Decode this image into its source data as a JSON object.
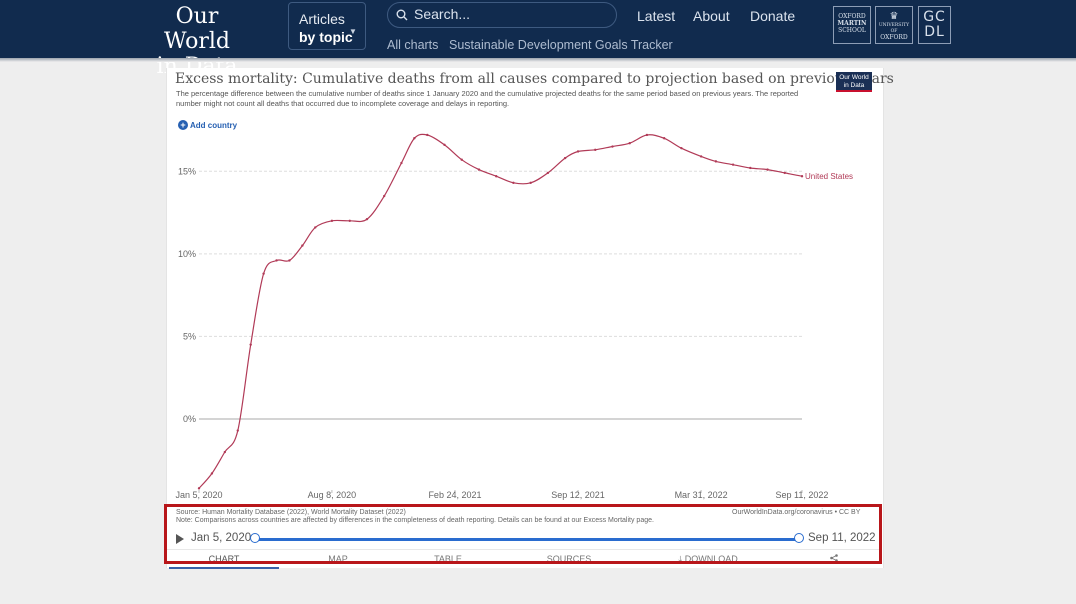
{
  "header": {
    "logo_line1": "Our World",
    "logo_line2": "in Data",
    "articles_label": "Articles",
    "by_topic_label": "by topic",
    "search_placeholder": "Search...",
    "nav": [
      "Latest",
      "About",
      "Donate"
    ],
    "subnav": [
      "All charts",
      "Sustainable Development Goals Tracker"
    ],
    "partners": {
      "oxford_martin": [
        "OXFORD",
        "MARTIN",
        "SCHOOL"
      ],
      "university": [
        "UNIVERSITY OF",
        "OXFORD"
      ],
      "gcdl": [
        "GC",
        "DL"
      ]
    }
  },
  "chart": {
    "title": "Excess mortality: Cumulative deaths from all causes compared to projection based on previous years",
    "subtitle": "The percentage difference between the cumulative number of deaths since 1 January 2020 and the cumulative projected deaths for the same period based on previous years. The reported number might not count all deaths that occurred due to incomplete coverage and delays in reporting.",
    "badge": [
      "Our World",
      "in Data"
    ],
    "add_country": "Add country",
    "source": "Source: Human Mortality Database (2022), World Mortality Dataset (2022)",
    "note": "Note: Comparisons across countries are affected by differences in the completeness of death reporting. Details can be found at our Excess Mortality page.",
    "citation": "OurWorldInData.org/coronavirus • CC BY",
    "timeline_start": "Jan 5, 2020",
    "timeline_end": "Sep 11, 2022",
    "tabs": [
      "CHART",
      "MAP",
      "TABLE",
      "SOURCES",
      "DOWNLOAD"
    ]
  },
  "chart_data": {
    "type": "line",
    "title": "Excess mortality: Cumulative deaths from all causes compared to projection based on previous years",
    "x_tick_labels": [
      "Jan 5, 2020",
      "Aug 8, 2020",
      "Feb 24, 2021",
      "Sep 12, 2021",
      "Mar 31, 2022",
      "Sep 11, 2022"
    ],
    "y_tick_labels": [
      "0%",
      "5%",
      "10%",
      "15%"
    ],
    "ylim": [
      -4.3,
      17.5
    ],
    "grid": true,
    "color": "#b13a57",
    "series": [
      {
        "name": "United States",
        "x": [
          "2020-01-05",
          "2020-01-26",
          "2020-02-16",
          "2020-03-08",
          "2020-03-29",
          "2020-04-19",
          "2020-05-10",
          "2020-05-31",
          "2020-06-21",
          "2020-07-12",
          "2020-08-08",
          "2020-09-06",
          "2020-10-04",
          "2020-11-01",
          "2020-11-29",
          "2020-12-20",
          "2021-01-10",
          "2021-02-07",
          "2021-03-07",
          "2021-04-04",
          "2021-05-02",
          "2021-05-30",
          "2021-06-27",
          "2021-07-25",
          "2021-08-22",
          "2021-09-12",
          "2021-10-10",
          "2021-11-07",
          "2021-12-05",
          "2022-01-02",
          "2022-01-30",
          "2022-02-27",
          "2022-03-31",
          "2022-04-24",
          "2022-05-22",
          "2022-06-19",
          "2022-07-17",
          "2022-08-14",
          "2022-09-11"
        ],
        "values": [
          -4.2,
          -3.3,
          -2.0,
          -0.7,
          4.5,
          8.8,
          9.6,
          9.6,
          10.5,
          11.6,
          12.0,
          12.0,
          12.1,
          13.5,
          15.5,
          17.0,
          17.2,
          16.6,
          15.7,
          15.1,
          14.7,
          14.3,
          14.3,
          14.9,
          15.8,
          16.2,
          16.3,
          16.5,
          16.7,
          17.2,
          17.0,
          16.4,
          15.9,
          15.6,
          15.4,
          15.2,
          15.1,
          14.9,
          14.7
        ]
      }
    ]
  }
}
